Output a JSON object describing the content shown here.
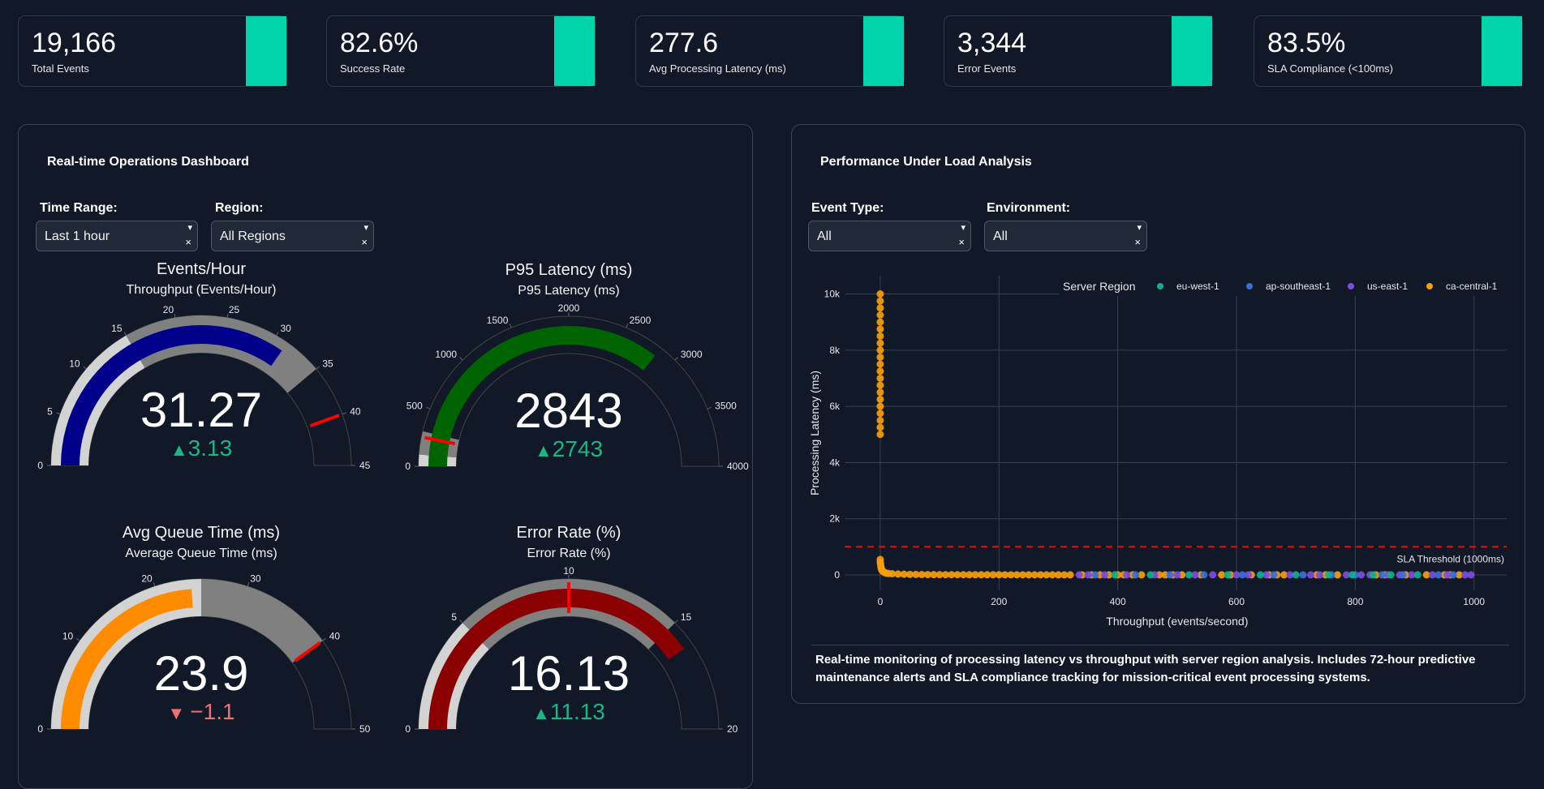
{
  "kpis": [
    {
      "value": "19,166",
      "label": "Total Events"
    },
    {
      "value": "82.6%",
      "label": "Success Rate"
    },
    {
      "value": "277.6",
      "label": "Avg Processing Latency (ms)"
    },
    {
      "value": "3,344",
      "label": "Error Events"
    },
    {
      "value": "83.5%",
      "label": "SLA Compliance (<100ms)"
    }
  ],
  "accent_color": "#00d4aa",
  "left_panel": {
    "title": "Real-time Operations Dashboard",
    "filters": [
      {
        "label": "Time Range:",
        "value": "Last 1 hour"
      },
      {
        "label": "Region:",
        "value": "All Regions"
      }
    ]
  },
  "dropdown_icons": {
    "open": "▾",
    "clear": "×"
  },
  "gauges": [
    {
      "title": "Events/Hour",
      "subtitle": "Throughput (Events/Hour)",
      "value": 31.27,
      "value_text": "31.27",
      "delta": "3.13",
      "delta_direction": "up",
      "range": [
        0,
        45
      ],
      "ticks": [
        0,
        5,
        10,
        15,
        20,
        25,
        30,
        35,
        40,
        45
      ],
      "bar_color": "#00008b",
      "steps": [
        {
          "range": [
            0,
            15
          ],
          "color": "#d3d3d3"
        },
        {
          "range": [
            15,
            35
          ],
          "color": "#808080"
        }
      ],
      "threshold": 40
    },
    {
      "title": "P95 Latency (ms)",
      "subtitle": "P95 Latency (ms)",
      "value": 2843,
      "value_text": "2843",
      "delta": "2743",
      "delta_direction": "up",
      "range": [
        0,
        4000
      ],
      "ticks": [
        0,
        500,
        1000,
        1500,
        2000,
        2500,
        3000,
        3500,
        4000
      ],
      "bar_color": "#006400",
      "steps": [
        {
          "range": [
            0,
            100
          ],
          "color": "#d3d3d3"
        },
        {
          "range": [
            100,
            300
          ],
          "color": "#808080"
        }
      ],
      "threshold": 250
    },
    {
      "title": "Avg Queue Time (ms)",
      "subtitle": "Average Queue Time (ms)",
      "value": 23.9,
      "value_text": "23.9",
      "delta": "−1.1",
      "delta_direction": "down",
      "range": [
        0,
        50
      ],
      "ticks": [
        0,
        10,
        20,
        30,
        40,
        50
      ],
      "bar_color": "#ff8c00",
      "steps": [
        {
          "range": [
            0,
            25
          ],
          "color": "#d3d3d3"
        },
        {
          "range": [
            25,
            40
          ],
          "color": "#808080"
        }
      ],
      "threshold": 40
    },
    {
      "title": "Error Rate (%)",
      "subtitle": "Error Rate (%)",
      "value": 16.13,
      "value_text": "16.13",
      "delta": "11.13",
      "delta_direction": "up",
      "range": [
        0,
        20
      ],
      "ticks": [
        0,
        5,
        10,
        15,
        20
      ],
      "bar_color": "#8b0000",
      "steps": [
        {
          "range": [
            0,
            5
          ],
          "color": "#d3d3d3"
        },
        {
          "range": [
            5,
            15
          ],
          "color": "#808080"
        }
      ],
      "threshold": 10
    }
  ],
  "delta_colors": {
    "up": "#1db584",
    "down": "#f07070"
  },
  "delta_icons": {
    "up": "▲",
    "down": "▼"
  },
  "threshold_color": "#ff0000",
  "right_panel": {
    "title": "Performance Under Load Analysis",
    "filters": [
      {
        "label": "Event Type:",
        "value": "All"
      },
      {
        "label": "Environment:",
        "value": "All"
      }
    ],
    "description": "Real-time monitoring of processing latency vs throughput with server region analysis. Includes 72-hour predictive maintenance alerts and SLA compliance tracking for mission-critical event processing systems."
  },
  "chart_data": {
    "type": "scatter",
    "xlabel": "Throughput (events/second)",
    "ylabel": "Processing Latency (ms)",
    "xlim": [
      -60,
      1055
    ],
    "ylim": [
      -550,
      10650
    ],
    "xticks": [
      0,
      200,
      400,
      600,
      800,
      1000
    ],
    "xtick_labels": [
      "0",
      "200",
      "400",
      "600",
      "800",
      "1000"
    ],
    "yticks": [
      0,
      2000,
      4000,
      6000,
      8000,
      10000
    ],
    "ytick_labels": [
      "0",
      "2k",
      "4k",
      "6k",
      "8k",
      "10k"
    ],
    "grid": true,
    "legend_title": "Server Region",
    "legend_position": "top-right",
    "reference_line": {
      "y": 1000,
      "label": "SLA Threshold (1000ms)",
      "color": "#ff0000",
      "style": "dashed"
    },
    "series": [
      {
        "name": "eu-west-1",
        "color": "#10b08a",
        "points": [
          [
            395,
            1
          ],
          [
            455,
            1
          ],
          [
            520,
            1
          ],
          [
            585,
            1
          ],
          [
            640,
            1
          ],
          [
            700,
            1
          ],
          [
            755,
            1
          ],
          [
            795,
            1
          ],
          [
            830,
            1
          ],
          [
            860,
            1
          ],
          [
            905,
            1
          ]
        ]
      },
      {
        "name": "ap-southeast-1",
        "color": "#3b6fd8",
        "points": [
          [
            362,
            1
          ],
          [
            430,
            1
          ],
          [
            488,
            1
          ],
          [
            545,
            1
          ],
          [
            610,
            1
          ],
          [
            663,
            1
          ],
          [
            712,
            1
          ],
          [
            760,
            1
          ],
          [
            800,
            1
          ],
          [
            845,
            1
          ],
          [
            880,
            1
          ],
          [
            940,
            1
          ],
          [
            965,
            1
          ]
        ]
      },
      {
        "name": "us-east-1",
        "color": "#7c4ddb",
        "points": [
          [
            335,
            1
          ],
          [
            350,
            1
          ],
          [
            378,
            1
          ],
          [
            415,
            1
          ],
          [
            462,
            1
          ],
          [
            500,
            1
          ],
          [
            530,
            1
          ],
          [
            560,
            1
          ],
          [
            600,
            1
          ],
          [
            620,
            1
          ],
          [
            650,
            1
          ],
          [
            690,
            1
          ],
          [
            725,
            1
          ],
          [
            740,
            1
          ],
          [
            785,
            1
          ],
          [
            810,
            1
          ],
          [
            825,
            1
          ],
          [
            855,
            1
          ],
          [
            875,
            1
          ],
          [
            895,
            1
          ],
          [
            930,
            1
          ],
          [
            955,
            1
          ],
          [
            985,
            1
          ],
          [
            995,
            1
          ]
        ]
      },
      {
        "name": "ca-central-1",
        "color": "#f59e0b",
        "points": [
          [
            0,
            5000
          ],
          [
            0,
            5250
          ],
          [
            0,
            5500
          ],
          [
            0,
            5750
          ],
          [
            0,
            6000
          ],
          [
            0,
            6250
          ],
          [
            0,
            6500
          ],
          [
            0,
            6750
          ],
          [
            0,
            7000
          ],
          [
            0,
            7250
          ],
          [
            0,
            7500
          ],
          [
            0,
            7750
          ],
          [
            0,
            8000
          ],
          [
            0,
            8250
          ],
          [
            0,
            8500
          ],
          [
            0,
            8750
          ],
          [
            0,
            9000
          ],
          [
            0,
            9250
          ],
          [
            0,
            9500
          ],
          [
            0,
            9750
          ],
          [
            0,
            10000
          ],
          [
            0,
            550
          ],
          [
            0,
            450
          ],
          [
            0.5,
            380
          ],
          [
            1,
            300
          ],
          [
            1.5,
            250
          ],
          [
            2,
            200
          ],
          [
            3,
            160
          ],
          [
            4,
            130
          ],
          [
            6,
            100
          ],
          [
            8,
            80
          ],
          [
            10,
            60
          ],
          [
            14,
            50
          ],
          [
            20,
            40
          ],
          [
            30,
            30
          ],
          [
            40,
            22
          ],
          [
            50,
            18
          ],
          [
            60,
            15
          ],
          [
            70,
            12
          ],
          [
            80,
            10
          ],
          [
            90,
            9
          ],
          [
            100,
            8
          ],
          [
            110,
            7
          ],
          [
            120,
            7
          ],
          [
            130,
            6
          ],
          [
            140,
            6
          ],
          [
            150,
            5
          ],
          [
            160,
            5
          ],
          [
            170,
            5
          ],
          [
            180,
            4
          ],
          [
            190,
            4
          ],
          [
            200,
            4
          ],
          [
            210,
            3
          ],
          [
            220,
            3
          ],
          [
            230,
            3
          ],
          [
            240,
            3
          ],
          [
            250,
            2
          ],
          [
            260,
            2
          ],
          [
            270,
            2
          ],
          [
            280,
            2
          ],
          [
            290,
            2
          ],
          [
            300,
            1
          ],
          [
            310,
            1
          ],
          [
            320,
            1
          ],
          [
            340,
            1
          ],
          [
            356,
            1
          ],
          [
            370,
            1
          ],
          [
            385,
            1
          ],
          [
            400,
            1
          ],
          [
            410,
            1
          ],
          [
            425,
            1
          ],
          [
            440,
            1
          ],
          [
            470,
            1
          ],
          [
            480,
            1
          ],
          [
            493,
            1
          ],
          [
            508,
            1
          ],
          [
            540,
            1
          ],
          [
            575,
            1
          ],
          [
            590,
            1
          ],
          [
            625,
            1
          ],
          [
            655,
            1
          ],
          [
            668,
            1
          ],
          [
            680,
            1
          ],
          [
            735,
            1
          ],
          [
            750,
            1
          ],
          [
            770,
            1
          ],
          [
            835,
            1
          ],
          [
            850,
            1
          ],
          [
            885,
            1
          ],
          [
            920,
            1
          ],
          [
            950,
            1
          ],
          [
            960,
            1
          ],
          [
            975,
            1
          ]
        ]
      }
    ]
  }
}
